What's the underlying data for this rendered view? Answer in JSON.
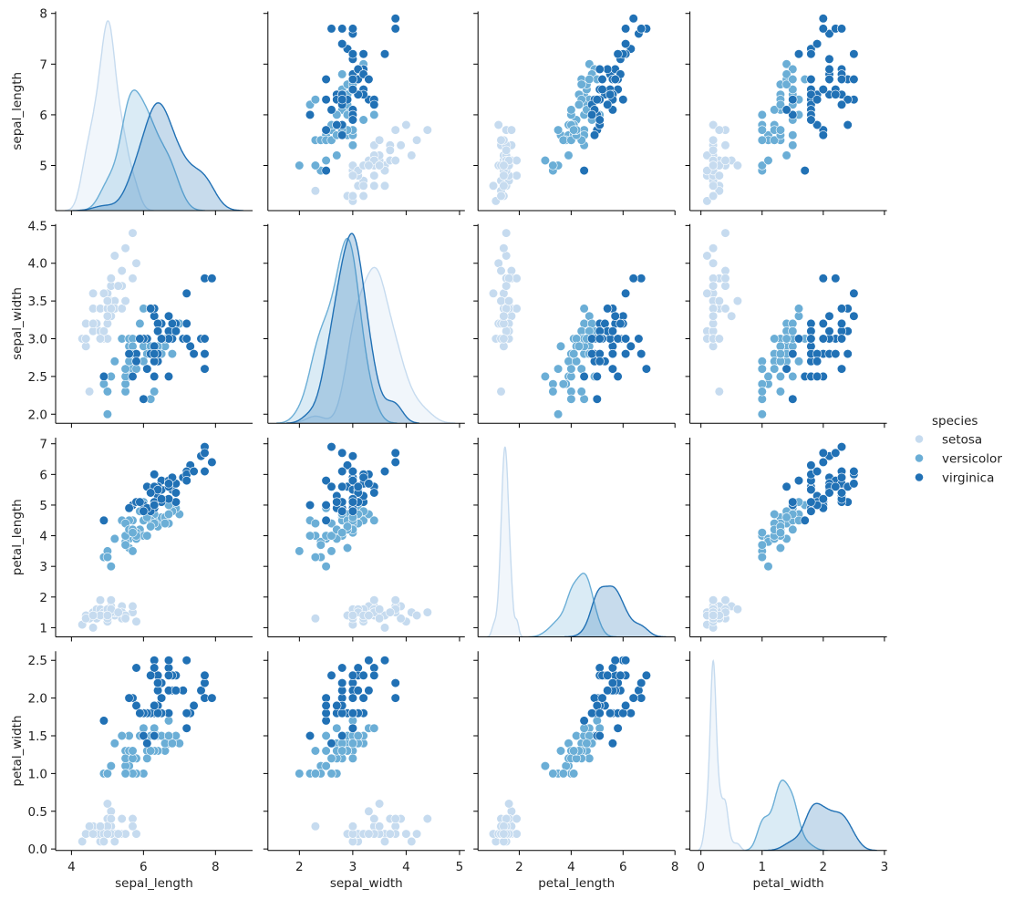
{
  "chart_data": {
    "type": "scatter",
    "kind": "pairplot",
    "diag_kind": "kde",
    "hue": "species",
    "legend": {
      "title": "species",
      "position": "right",
      "entries": [
        "setosa",
        "versicolor",
        "virginica"
      ]
    },
    "colors": {
      "setosa": "#c6dbef",
      "versicolor": "#6baed6",
      "virginica": "#2171b5"
    },
    "grid": false,
    "variables": [
      "sepal_length",
      "sepal_width",
      "petal_length",
      "petal_width"
    ],
    "axes": [
      {
        "variable": "sepal_length",
        "xlim": [
          3.56,
          9.03
        ],
        "ylim": [
          4.11,
          8.04
        ],
        "xticks": [
          4,
          6,
          8
        ],
        "xtick_labels": [
          "4",
          "6",
          "8"
        ],
        "yticks": [
          5,
          6,
          7,
          8
        ],
        "ytick_labels": [
          "5",
          "6",
          "7",
          "8"
        ]
      },
      {
        "variable": "sepal_width",
        "xlim": [
          1.41,
          5.1
        ],
        "ylim": [
          1.88,
          4.52
        ],
        "xticks": [
          2,
          3,
          4,
          5
        ],
        "xtick_labels": [
          "2",
          "3",
          "4",
          "5"
        ],
        "yticks": [
          2.0,
          2.5,
          3.0,
          3.5,
          4.0,
          4.5
        ],
        "ytick_labels": [
          "2.0",
          "2.5",
          "3.0",
          "3.5",
          "4.0",
          "4.5"
        ]
      },
      {
        "variable": "petal_length",
        "xlim": [
          0.41,
          8.0
        ],
        "ylim": [
          0.7,
          7.2
        ],
        "xticks": [
          2,
          4,
          6,
          8
        ],
        "xtick_labels": [
          "2",
          "4",
          "6",
          "8"
        ],
        "yticks": [
          1,
          2,
          3,
          4,
          5,
          6,
          7
        ],
        "ytick_labels": [
          "1",
          "2",
          "3",
          "4",
          "5",
          "6",
          "7"
        ]
      },
      {
        "variable": "petal_width",
        "xlim": [
          -0.18,
          3.04
        ],
        "ylim": [
          -0.02,
          2.62
        ],
        "xticks": [
          0,
          1,
          2,
          3
        ],
        "xtick_labels": [
          "0",
          "1",
          "2",
          "3"
        ],
        "yticks": [
          0.0,
          0.5,
          1.0,
          1.5,
          2.0,
          2.5
        ],
        "ytick_labels": [
          "0.0",
          "0.5",
          "1.0",
          "1.5",
          "2.0",
          "2.5"
        ]
      }
    ],
    "rows": [
      [
        5.1,
        3.5,
        1.4,
        0.2,
        "setosa"
      ],
      [
        4.9,
        3.0,
        1.4,
        0.2,
        "setosa"
      ],
      [
        4.7,
        3.2,
        1.3,
        0.2,
        "setosa"
      ],
      [
        4.6,
        3.1,
        1.5,
        0.2,
        "setosa"
      ],
      [
        5.0,
        3.6,
        1.4,
        0.2,
        "setosa"
      ],
      [
        5.4,
        3.9,
        1.7,
        0.4,
        "setosa"
      ],
      [
        4.6,
        3.4,
        1.4,
        0.3,
        "setosa"
      ],
      [
        5.0,
        3.4,
        1.5,
        0.2,
        "setosa"
      ],
      [
        4.4,
        2.9,
        1.4,
        0.2,
        "setosa"
      ],
      [
        4.9,
        3.1,
        1.5,
        0.1,
        "setosa"
      ],
      [
        5.4,
        3.7,
        1.5,
        0.2,
        "setosa"
      ],
      [
        4.8,
        3.4,
        1.6,
        0.2,
        "setosa"
      ],
      [
        4.8,
        3.0,
        1.4,
        0.1,
        "setosa"
      ],
      [
        4.3,
        3.0,
        1.1,
        0.1,
        "setosa"
      ],
      [
        5.8,
        4.0,
        1.2,
        0.2,
        "setosa"
      ],
      [
        5.7,
        4.4,
        1.5,
        0.4,
        "setosa"
      ],
      [
        5.4,
        3.9,
        1.3,
        0.4,
        "setosa"
      ],
      [
        5.1,
        3.5,
        1.4,
        0.3,
        "setosa"
      ],
      [
        5.7,
        3.8,
        1.7,
        0.3,
        "setosa"
      ],
      [
        5.1,
        3.8,
        1.5,
        0.3,
        "setosa"
      ],
      [
        5.4,
        3.4,
        1.7,
        0.2,
        "setosa"
      ],
      [
        5.1,
        3.7,
        1.5,
        0.4,
        "setosa"
      ],
      [
        4.6,
        3.6,
        1.0,
        0.2,
        "setosa"
      ],
      [
        5.1,
        3.3,
        1.7,
        0.5,
        "setosa"
      ],
      [
        4.8,
        3.4,
        1.9,
        0.2,
        "setosa"
      ],
      [
        5.0,
        3.0,
        1.6,
        0.2,
        "setosa"
      ],
      [
        5.0,
        3.4,
        1.6,
        0.4,
        "setosa"
      ],
      [
        5.2,
        3.5,
        1.5,
        0.2,
        "setosa"
      ],
      [
        5.2,
        3.4,
        1.4,
        0.2,
        "setosa"
      ],
      [
        4.7,
        3.2,
        1.6,
        0.2,
        "setosa"
      ],
      [
        4.8,
        3.1,
        1.6,
        0.2,
        "setosa"
      ],
      [
        5.4,
        3.4,
        1.5,
        0.4,
        "setosa"
      ],
      [
        5.2,
        4.1,
        1.5,
        0.1,
        "setosa"
      ],
      [
        5.5,
        4.2,
        1.4,
        0.2,
        "setosa"
      ],
      [
        4.9,
        3.1,
        1.5,
        0.2,
        "setosa"
      ],
      [
        5.0,
        3.2,
        1.2,
        0.2,
        "setosa"
      ],
      [
        5.5,
        3.5,
        1.3,
        0.2,
        "setosa"
      ],
      [
        4.9,
        3.6,
        1.4,
        0.1,
        "setosa"
      ],
      [
        4.4,
        3.0,
        1.3,
        0.2,
        "setosa"
      ],
      [
        5.1,
        3.4,
        1.5,
        0.2,
        "setosa"
      ],
      [
        5.0,
        3.5,
        1.3,
        0.3,
        "setosa"
      ],
      [
        4.5,
        2.3,
        1.3,
        0.3,
        "setosa"
      ],
      [
        4.4,
        3.2,
        1.3,
        0.2,
        "setosa"
      ],
      [
        5.0,
        3.5,
        1.6,
        0.6,
        "setosa"
      ],
      [
        5.1,
        3.8,
        1.9,
        0.4,
        "setosa"
      ],
      [
        4.8,
        3.0,
        1.4,
        0.3,
        "setosa"
      ],
      [
        5.1,
        3.8,
        1.6,
        0.2,
        "setosa"
      ],
      [
        4.6,
        3.2,
        1.4,
        0.2,
        "setosa"
      ],
      [
        5.3,
        3.7,
        1.5,
        0.2,
        "setosa"
      ],
      [
        5.0,
        3.3,
        1.4,
        0.2,
        "setosa"
      ],
      [
        7.0,
        3.2,
        4.7,
        1.4,
        "versicolor"
      ],
      [
        6.4,
        3.2,
        4.5,
        1.5,
        "versicolor"
      ],
      [
        6.9,
        3.1,
        4.9,
        1.5,
        "versicolor"
      ],
      [
        5.5,
        2.3,
        4.0,
        1.3,
        "versicolor"
      ],
      [
        6.5,
        2.8,
        4.6,
        1.5,
        "versicolor"
      ],
      [
        5.7,
        2.8,
        4.5,
        1.3,
        "versicolor"
      ],
      [
        6.3,
        3.3,
        4.7,
        1.6,
        "versicolor"
      ],
      [
        4.9,
        2.4,
        3.3,
        1.0,
        "versicolor"
      ],
      [
        6.6,
        2.9,
        4.6,
        1.3,
        "versicolor"
      ],
      [
        5.2,
        2.7,
        3.9,
        1.4,
        "versicolor"
      ],
      [
        5.0,
        2.0,
        3.5,
        1.0,
        "versicolor"
      ],
      [
        5.9,
        3.0,
        4.2,
        1.5,
        "versicolor"
      ],
      [
        6.0,
        2.2,
        4.0,
        1.0,
        "versicolor"
      ],
      [
        6.1,
        2.9,
        4.7,
        1.4,
        "versicolor"
      ],
      [
        5.6,
        2.9,
        3.6,
        1.3,
        "versicolor"
      ],
      [
        6.7,
        3.1,
        4.4,
        1.4,
        "versicolor"
      ],
      [
        5.6,
        3.0,
        4.5,
        1.5,
        "versicolor"
      ],
      [
        5.8,
        2.7,
        4.1,
        1.0,
        "versicolor"
      ],
      [
        6.2,
        2.2,
        4.5,
        1.5,
        "versicolor"
      ],
      [
        5.6,
        2.5,
        3.9,
        1.1,
        "versicolor"
      ],
      [
        5.9,
        3.2,
        4.8,
        1.8,
        "versicolor"
      ],
      [
        6.1,
        2.8,
        4.0,
        1.3,
        "versicolor"
      ],
      [
        6.3,
        2.5,
        4.9,
        1.5,
        "versicolor"
      ],
      [
        6.1,
        2.8,
        4.7,
        1.2,
        "versicolor"
      ],
      [
        6.4,
        2.9,
        4.3,
        1.3,
        "versicolor"
      ],
      [
        6.6,
        3.0,
        4.4,
        1.4,
        "versicolor"
      ],
      [
        6.8,
        2.8,
        4.8,
        1.4,
        "versicolor"
      ],
      [
        6.7,
        3.0,
        5.0,
        1.7,
        "versicolor"
      ],
      [
        6.0,
        2.9,
        4.5,
        1.5,
        "versicolor"
      ],
      [
        5.7,
        2.6,
        3.5,
        1.0,
        "versicolor"
      ],
      [
        5.5,
        2.4,
        3.8,
        1.1,
        "versicolor"
      ],
      [
        5.5,
        2.4,
        3.7,
        1.0,
        "versicolor"
      ],
      [
        5.8,
        2.7,
        3.9,
        1.2,
        "versicolor"
      ],
      [
        6.0,
        2.7,
        5.1,
        1.6,
        "versicolor"
      ],
      [
        5.4,
        3.0,
        4.5,
        1.5,
        "versicolor"
      ],
      [
        6.0,
        3.4,
        4.5,
        1.6,
        "versicolor"
      ],
      [
        6.7,
        3.1,
        4.7,
        1.5,
        "versicolor"
      ],
      [
        6.3,
        2.3,
        4.4,
        1.3,
        "versicolor"
      ],
      [
        5.6,
        3.0,
        4.1,
        1.3,
        "versicolor"
      ],
      [
        5.5,
        2.5,
        4.0,
        1.3,
        "versicolor"
      ],
      [
        5.5,
        2.6,
        4.4,
        1.2,
        "versicolor"
      ],
      [
        6.1,
        3.0,
        4.6,
        1.4,
        "versicolor"
      ],
      [
        5.8,
        2.6,
        4.0,
        1.2,
        "versicolor"
      ],
      [
        5.0,
        2.3,
        3.3,
        1.0,
        "versicolor"
      ],
      [
        5.6,
        2.7,
        4.2,
        1.3,
        "versicolor"
      ],
      [
        5.7,
        3.0,
        4.2,
        1.2,
        "versicolor"
      ],
      [
        5.7,
        2.9,
        4.2,
        1.3,
        "versicolor"
      ],
      [
        6.2,
        2.9,
        4.3,
        1.3,
        "versicolor"
      ],
      [
        5.1,
        2.5,
        3.0,
        1.1,
        "versicolor"
      ],
      [
        5.7,
        2.8,
        4.1,
        1.3,
        "versicolor"
      ],
      [
        6.3,
        3.3,
        6.0,
        2.5,
        "virginica"
      ],
      [
        5.8,
        2.7,
        5.1,
        1.9,
        "virginica"
      ],
      [
        7.1,
        3.0,
        5.9,
        2.1,
        "virginica"
      ],
      [
        6.3,
        2.9,
        5.6,
        1.8,
        "virginica"
      ],
      [
        6.5,
        3.0,
        5.8,
        2.2,
        "virginica"
      ],
      [
        7.6,
        3.0,
        6.6,
        2.1,
        "virginica"
      ],
      [
        4.9,
        2.5,
        4.5,
        1.7,
        "virginica"
      ],
      [
        7.3,
        2.9,
        6.3,
        1.8,
        "virginica"
      ],
      [
        6.7,
        2.5,
        5.8,
        1.8,
        "virginica"
      ],
      [
        7.2,
        3.6,
        6.1,
        2.5,
        "virginica"
      ],
      [
        6.5,
        3.2,
        5.1,
        2.0,
        "virginica"
      ],
      [
        6.4,
        2.7,
        5.3,
        1.9,
        "virginica"
      ],
      [
        6.8,
        3.0,
        5.5,
        2.1,
        "virginica"
      ],
      [
        5.7,
        2.5,
        5.0,
        2.0,
        "virginica"
      ],
      [
        5.8,
        2.8,
        5.1,
        2.4,
        "virginica"
      ],
      [
        6.4,
        3.2,
        5.3,
        2.3,
        "virginica"
      ],
      [
        6.5,
        3.0,
        5.5,
        1.8,
        "virginica"
      ],
      [
        7.7,
        3.8,
        6.7,
        2.2,
        "virginica"
      ],
      [
        7.7,
        2.6,
        6.9,
        2.3,
        "virginica"
      ],
      [
        6.0,
        2.2,
        5.0,
        1.5,
        "virginica"
      ],
      [
        6.9,
        3.2,
        5.7,
        2.3,
        "virginica"
      ],
      [
        5.6,
        2.8,
        4.9,
        2.0,
        "virginica"
      ],
      [
        7.7,
        2.8,
        6.7,
        2.0,
        "virginica"
      ],
      [
        6.3,
        2.7,
        4.9,
        1.8,
        "virginica"
      ],
      [
        6.7,
        3.3,
        5.7,
        2.1,
        "virginica"
      ],
      [
        7.2,
        3.2,
        6.0,
        1.8,
        "virginica"
      ],
      [
        6.2,
        2.8,
        4.8,
        1.8,
        "virginica"
      ],
      [
        6.1,
        3.0,
        4.9,
        1.8,
        "virginica"
      ],
      [
        6.4,
        2.8,
        5.6,
        2.1,
        "virginica"
      ],
      [
        7.2,
        3.0,
        5.8,
        1.6,
        "virginica"
      ],
      [
        7.4,
        2.8,
        6.1,
        1.9,
        "virginica"
      ],
      [
        7.9,
        3.8,
        6.4,
        2.0,
        "virginica"
      ],
      [
        6.4,
        2.8,
        5.6,
        2.2,
        "virginica"
      ],
      [
        6.3,
        2.8,
        5.1,
        1.5,
        "virginica"
      ],
      [
        6.1,
        2.6,
        5.6,
        1.4,
        "virginica"
      ],
      [
        7.7,
        3.0,
        6.1,
        2.3,
        "virginica"
      ],
      [
        6.3,
        3.4,
        5.6,
        2.4,
        "virginica"
      ],
      [
        6.4,
        3.1,
        5.5,
        1.8,
        "virginica"
      ],
      [
        6.0,
        3.0,
        4.8,
        1.8,
        "virginica"
      ],
      [
        6.9,
        3.1,
        5.4,
        2.1,
        "virginica"
      ],
      [
        6.7,
        3.1,
        5.6,
        2.4,
        "virginica"
      ],
      [
        6.9,
        3.1,
        5.1,
        2.3,
        "virginica"
      ],
      [
        5.8,
        2.7,
        5.1,
        1.9,
        "virginica"
      ],
      [
        6.8,
        3.2,
        5.9,
        2.3,
        "virginica"
      ],
      [
        6.7,
        3.3,
        5.7,
        2.5,
        "virginica"
      ],
      [
        6.7,
        3.0,
        5.2,
        2.3,
        "virginica"
      ],
      [
        6.3,
        2.5,
        5.0,
        1.9,
        "virginica"
      ],
      [
        6.5,
        3.0,
        5.2,
        2.0,
        "virginica"
      ],
      [
        6.2,
        3.4,
        5.4,
        2.3,
        "virginica"
      ],
      [
        5.9,
        3.0,
        5.1,
        1.8,
        "virginica"
      ]
    ]
  }
}
